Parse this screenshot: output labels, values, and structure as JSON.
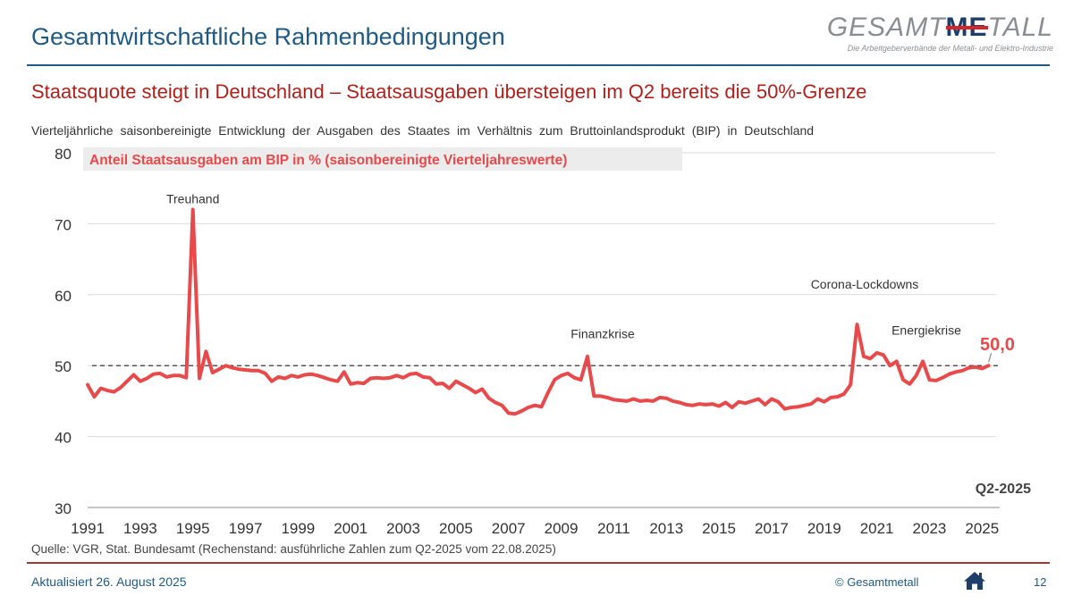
{
  "header": {
    "title": "Gesamtwirtschaftliche Rahmenbedingungen",
    "logo_prefix": "GESAMT",
    "logo_me": "ME",
    "logo_suffix": "TALL",
    "logo_tagline": "Die Arbeitgeberverbände der Metall- und Elektro-Industrie"
  },
  "subtitle": "Staatsquote steigt in Deutschland – Staatsausgaben übersteigen im Q2 bereits die 50%-Grenze",
  "description": "Vierteljährliche saisonbereinigte Entwicklung der Ausgaben des Staates im Verhältnis zum Bruttoinlandsprodukt (BIP) in Deutschland",
  "footer": {
    "source": "Quelle: VGR, Stat. Bundesamt (Rechenstand: ausführliche Zahlen zum Q2-2025 vom 22.08.2025)",
    "updated": "Aktualisiert 26. August 2025",
    "copyright": "© Gesamtmetall",
    "page_number": "12"
  },
  "colors": {
    "series": "#e8494b",
    "title_blue": "#1f5a85",
    "subtitle_red": "#b0211d",
    "legend_bg": "#ececec",
    "reference": "#222222",
    "grid": "#d9d9d9"
  },
  "icons": {
    "home": "home-icon"
  },
  "chart_data": {
    "type": "line",
    "title": "Anteil Staatsausgaben am BIP in % (saisonbereinigte Vierteljahreswerte)",
    "xlabel": "",
    "ylabel": "",
    "ylim": [
      30,
      80
    ],
    "yticks": [
      30,
      40,
      50,
      60,
      70,
      80
    ],
    "xlim": [
      1991.0,
      2025.5
    ],
    "xticks": [
      1991,
      1993,
      1995,
      1997,
      1999,
      2001,
      2003,
      2005,
      2007,
      2009,
      2011,
      2013,
      2015,
      2017,
      2019,
      2021,
      2023,
      2025
    ],
    "grid": "horizontal",
    "reference_line": {
      "y": 50,
      "style": "dashed"
    },
    "last_value_label": "50,0",
    "period_label": "Q2-2025",
    "annotations": [
      {
        "text": "Treuhand",
        "x": 1995.0,
        "y": 73.5
      },
      {
        "text": "Finanzkrise",
        "x": 2010.5,
        "y": 54.5
      },
      {
        "text": "Corona-Lockdowns",
        "x": 2020.5,
        "y": 61.5
      },
      {
        "text": "Energiekrise",
        "x": 2022.7,
        "y": 55.0
      }
    ],
    "series": [
      {
        "name": "Anteil Staatsausgaben am BIP in %",
        "x": [
          1991.0,
          1991.25,
          1991.5,
          1991.75,
          1992.0,
          1992.25,
          1992.5,
          1992.75,
          1993.0,
          1993.25,
          1993.5,
          1993.75,
          1994.0,
          1994.25,
          1994.5,
          1994.75,
          1995.0,
          1995.25,
          1995.5,
          1995.75,
          1996.0,
          1996.25,
          1996.5,
          1996.75,
          1997.0,
          1997.25,
          1997.5,
          1997.75,
          1998.0,
          1998.25,
          1998.5,
          1998.75,
          1999.0,
          1999.25,
          1999.5,
          1999.75,
          2000.0,
          2000.25,
          2000.5,
          2000.75,
          2001.0,
          2001.25,
          2001.5,
          2001.75,
          2002.0,
          2002.25,
          2002.5,
          2002.75,
          2003.0,
          2003.25,
          2003.5,
          2003.75,
          2004.0,
          2004.25,
          2004.5,
          2004.75,
          2005.0,
          2005.25,
          2005.5,
          2005.75,
          2006.0,
          2006.25,
          2006.5,
          2006.75,
          2007.0,
          2007.25,
          2007.5,
          2007.75,
          2008.0,
          2008.25,
          2008.5,
          2008.75,
          2009.0,
          2009.25,
          2009.5,
          2009.75,
          2010.0,
          2010.25,
          2010.5,
          2010.75,
          2011.0,
          2011.25,
          2011.5,
          2011.75,
          2012.0,
          2012.25,
          2012.5,
          2012.75,
          2013.0,
          2013.25,
          2013.5,
          2013.75,
          2014.0,
          2014.25,
          2014.5,
          2014.75,
          2015.0,
          2015.25,
          2015.5,
          2015.75,
          2016.0,
          2016.25,
          2016.5,
          2016.75,
          2017.0,
          2017.25,
          2017.5,
          2017.75,
          2018.0,
          2018.25,
          2018.5,
          2018.75,
          2019.0,
          2019.25,
          2019.5,
          2019.75,
          2020.0,
          2020.25,
          2020.5,
          2020.75,
          2021.0,
          2021.25,
          2021.5,
          2021.75,
          2022.0,
          2022.25,
          2022.5,
          2022.75,
          2023.0,
          2023.25,
          2023.5,
          2023.75,
          2024.0,
          2024.25,
          2024.5,
          2024.75,
          2025.0,
          2025.25
        ],
        "values": [
          47.3,
          45.6,
          46.8,
          46.5,
          46.3,
          46.9,
          47.8,
          48.7,
          47.8,
          48.2,
          48.8,
          48.9,
          48.4,
          48.6,
          48.6,
          48.3,
          72.0,
          48.2,
          52.0,
          49.0,
          49.5,
          50.0,
          49.7,
          49.5,
          49.4,
          49.3,
          49.3,
          48.9,
          47.8,
          48.4,
          48.2,
          48.6,
          48.4,
          48.7,
          48.8,
          48.6,
          48.3,
          48.0,
          47.8,
          49.1,
          47.4,
          47.6,
          47.5,
          48.2,
          48.3,
          48.2,
          48.3,
          48.6,
          48.3,
          48.8,
          48.9,
          48.4,
          48.3,
          47.4,
          47.5,
          46.8,
          47.8,
          47.3,
          46.8,
          46.2,
          46.7,
          45.4,
          44.8,
          44.4,
          43.3,
          43.2,
          43.6,
          44.1,
          44.4,
          44.2,
          46.2,
          48.0,
          48.6,
          48.9,
          48.3,
          48.0,
          51.3,
          45.7,
          45.7,
          45.5,
          45.2,
          45.1,
          45.0,
          45.3,
          45.0,
          45.1,
          45.0,
          45.5,
          45.4,
          45.0,
          44.8,
          44.5,
          44.4,
          44.6,
          44.5,
          44.6,
          44.3,
          44.8,
          44.1,
          44.9,
          44.7,
          45.0,
          45.3,
          44.5,
          45.3,
          44.9,
          43.9,
          44.1,
          44.2,
          44.4,
          44.6,
          45.3,
          44.9,
          45.5,
          45.6,
          46.0,
          47.3,
          55.8,
          51.3,
          51.0,
          51.8,
          51.5,
          50.0,
          50.6,
          48.0,
          47.4,
          48.6,
          50.6,
          48.0,
          47.9,
          48.3,
          48.8,
          49.1,
          49.3,
          49.7,
          49.8,
          49.6,
          50.0
        ]
      }
    ]
  }
}
